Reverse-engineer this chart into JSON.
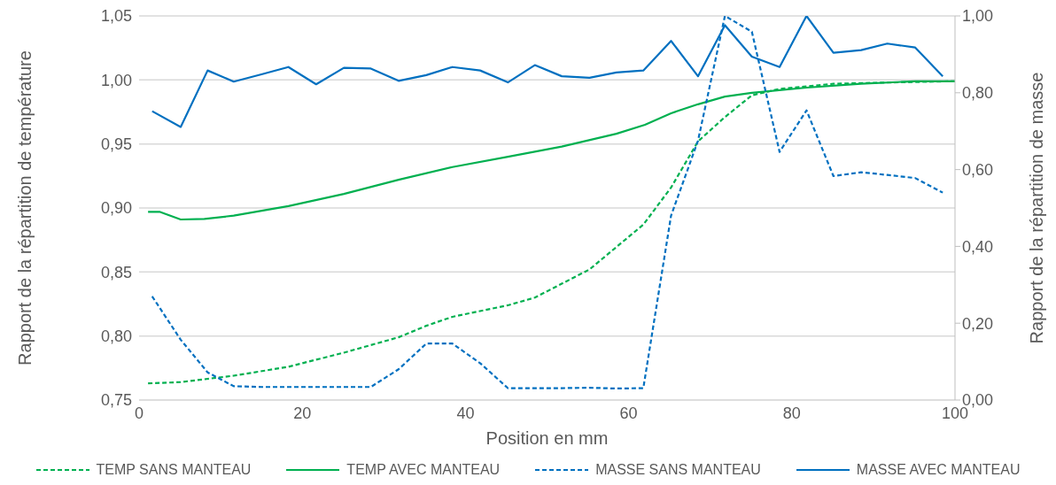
{
  "chart_data": {
    "type": "line",
    "xlabel": "Position en mm",
    "ylabel": "Rapport de la répartition de température",
    "y2label": "Rapport de la répartition de masse",
    "xlim": [
      0,
      100
    ],
    "xticks": [
      0,
      20,
      40,
      60,
      80,
      100
    ],
    "ylim": [
      0.75,
      1.05
    ],
    "yticks": [
      {
        "value": 0.75,
        "label": "0,75"
      },
      {
        "value": 0.8,
        "label": "0,80"
      },
      {
        "value": 0.85,
        "label": "0,85"
      },
      {
        "value": 0.9,
        "label": "0,90"
      },
      {
        "value": 0.95,
        "label": "0,95"
      },
      {
        "value": 1.0,
        "label": "1,00"
      },
      {
        "value": 1.05,
        "label": "1,05"
      }
    ],
    "y2lim": [
      0,
      1
    ],
    "y2ticks": [
      {
        "value": 0,
        "label": "0,00"
      },
      {
        "value": 0.2,
        "label": "0,20"
      },
      {
        "value": 0.4,
        "label": "0,40"
      },
      {
        "value": 0.6,
        "label": "0,60"
      },
      {
        "value": 0.8,
        "label": "0,80"
      },
      {
        "value": 1.0,
        "label": "1,00"
      }
    ],
    "grid": "y",
    "legend": "bottom",
    "marker": "none",
    "series": [
      {
        "name": "TEMP SANS MANTEAU",
        "color": "#00b050",
        "line_style": "dashed",
        "x": [
          1.1,
          5.1,
          11.6,
          18.3,
          25.1,
          31.8,
          35.2,
          38.4,
          45.2,
          48.5,
          55.2,
          61.8,
          65.2,
          68.5,
          71.8,
          75.1,
          78.5,
          85.1,
          91.7,
          100
        ],
        "values": [
          0.763,
          0.764,
          0.769,
          0.776,
          0.787,
          0.799,
          0.808,
          0.815,
          0.824,
          0.83,
          0.852,
          0.887,
          0.916,
          0.952,
          0.971,
          0.988,
          0.993,
          0.997,
          0.998,
          0.999
        ]
      },
      {
        "name": "TEMP AVEC MANTEAU",
        "color": "#00b050",
        "line_style": "solid",
        "x": [
          1.1,
          2.5,
          5.1,
          8,
          11.6,
          18.3,
          25.1,
          31.8,
          38.4,
          45.2,
          51.8,
          58.5,
          62,
          65.2,
          68.5,
          71.8,
          75.1,
          81.8,
          88.5,
          95.1,
          100
        ],
        "values": [
          0.897,
          0.897,
          0.891,
          0.8915,
          0.894,
          0.9015,
          0.911,
          0.922,
          0.932,
          0.94,
          0.948,
          0.958,
          0.965,
          0.974,
          0.981,
          0.987,
          0.99,
          0.994,
          0.997,
          0.999,
          0.999
        ]
      },
      {
        "name": "MASSE SANS MANTEAU",
        "color": "#0070c0",
        "line_style": "dashed",
        "axis": "y2",
        "x": [
          1.6,
          5.1,
          8.4,
          11.6,
          15.0,
          18.3,
          21.7,
          25.1,
          28.4,
          31.8,
          35.2,
          38.4,
          41.8,
          45.2,
          48.5,
          51.8,
          55.2,
          58.5,
          61.8,
          65.2,
          68.5,
          71.8,
          75.1,
          78.5,
          81.8,
          85.1,
          88.5,
          91.7,
          95.1,
          98.5
        ],
        "values": [
          0.27,
          0.157,
          0.072,
          0.036,
          0.034,
          0.034,
          0.034,
          0.034,
          0.034,
          0.08,
          0.147,
          0.147,
          0.096,
          0.031,
          0.031,
          0.031,
          0.032,
          0.03,
          0.031,
          0.48,
          0.675,
          1.0,
          0.959,
          0.646,
          0.754,
          0.583,
          0.593,
          0.586,
          0.578,
          0.54
        ]
      },
      {
        "name": "MASSE AVEC MANTEAU",
        "color": "#0070c0",
        "line_style": "solid",
        "axis": "y2",
        "x": [
          1.6,
          5.1,
          8.4,
          11.6,
          15.0,
          18.3,
          21.7,
          25.1,
          28.4,
          31.8,
          35.2,
          38.4,
          41.8,
          45.2,
          48.5,
          51.8,
          55.2,
          58.5,
          61.8,
          65.2,
          68.5,
          71.8,
          75.1,
          78.5,
          81.8,
          85.1,
          88.5,
          91.7,
          95.1,
          98.5
        ],
        "values": [
          0.752,
          0.711,
          0.858,
          0.829,
          0.848,
          0.867,
          0.822,
          0.865,
          0.863,
          0.831,
          0.846,
          0.867,
          0.858,
          0.827,
          0.872,
          0.843,
          0.839,
          0.853,
          0.858,
          0.935,
          0.843,
          0.976,
          0.894,
          0.867,
          1.0,
          0.904,
          0.911,
          0.928,
          0.918,
          0.843
        ]
      }
    ]
  }
}
